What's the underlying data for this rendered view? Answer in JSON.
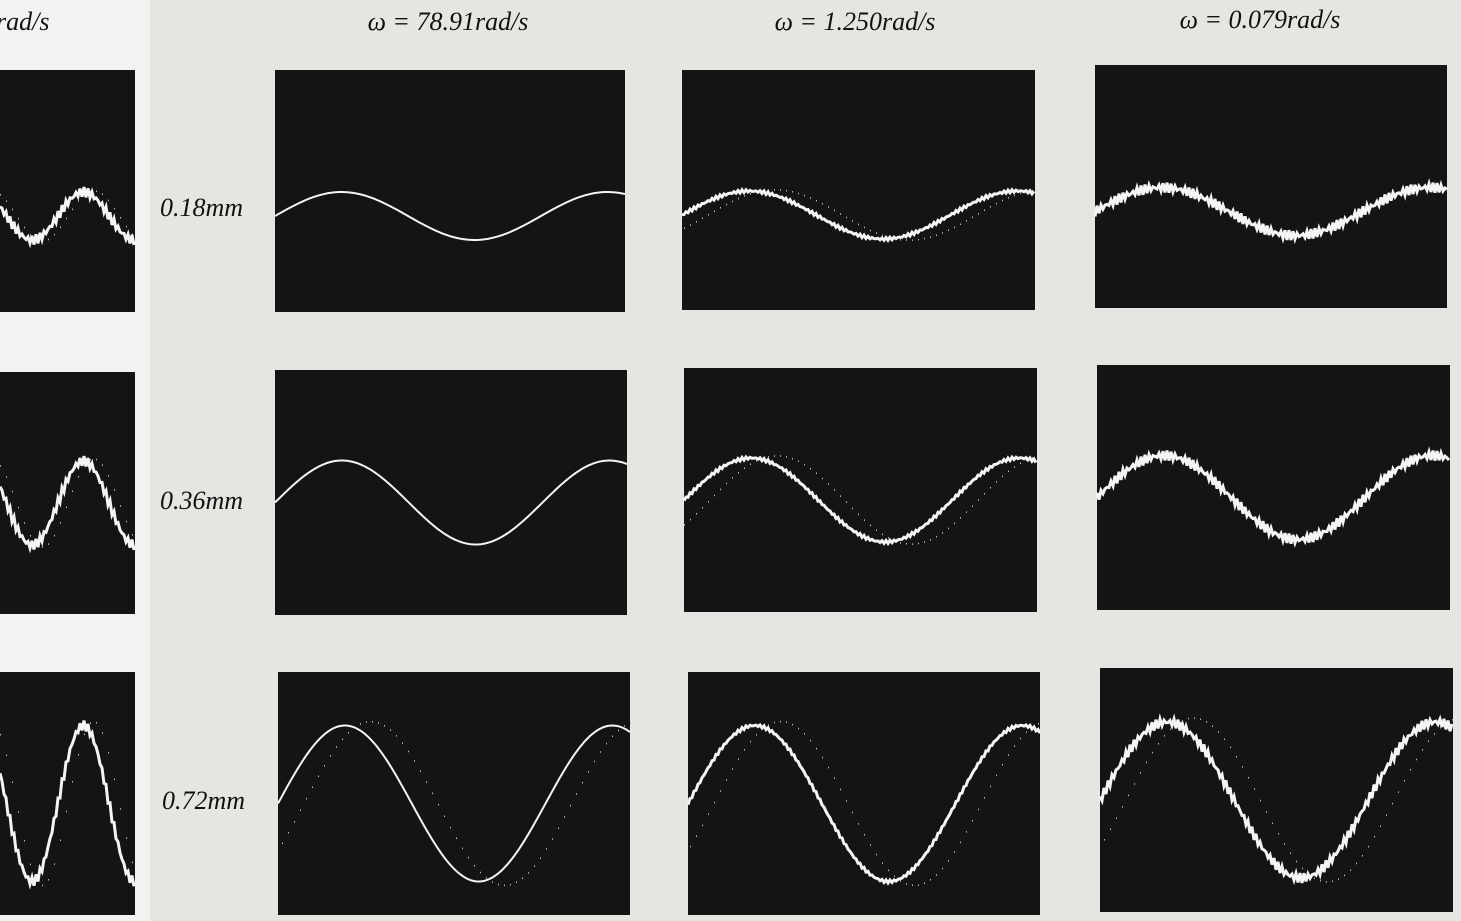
{
  "header": {
    "columns": [
      "rad/s",
      "ω = 78.91rad/s",
      "ω = 1.250rad/s",
      "ω = 0.079rad/s"
    ]
  },
  "rows": {
    "labels": [
      "0.18mm",
      "0.36mm",
      "0.72mm"
    ]
  }
}
